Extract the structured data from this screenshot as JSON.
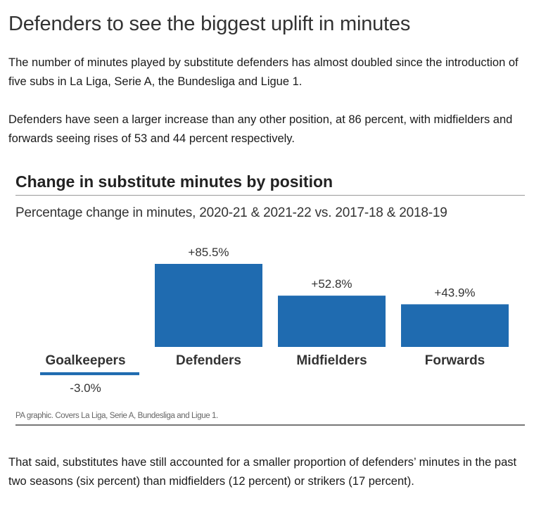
{
  "article": {
    "headline": "Defenders to see the biggest uplift in minutes",
    "paragraph1": "The number of minutes played by substitute defenders has almost doubled since the introduction of five subs in La Liga, Serie A, the Bundesliga and Ligue 1.",
    "paragraph2": "Defenders have seen a larger increase than any other position, at 86 percent, with midfielders and forwards seeing rises of 53 and 44 percent respectively.",
    "paragraph3": "That said, substitutes have still accounted for a smaller proportion of defenders’ minutes in the past two seasons (six percent) than midfielders (12 percent) or strikers (17 percent)."
  },
  "chart_data": {
    "type": "bar",
    "title": "Change in substitute minutes by position",
    "subtitle": "Percentage change in minutes, 2020-21 & 2021-22 vs. 2017-18 & 2018-19",
    "categories": [
      "Goalkeepers",
      "Defenders",
      "Midfielders",
      "Forwards"
    ],
    "values": [
      -3.0,
      85.5,
      52.8,
      43.9
    ],
    "data_labels": [
      "-3.0%",
      "+85.5%",
      "+52.8%",
      "+43.9%"
    ],
    "xlabel": "",
    "ylabel": "",
    "ylim": [
      -3.0,
      85.5
    ],
    "grid": false,
    "source": "PA graphic. Covers La Liga, Serie A, Bundesliga and Ligue 1.",
    "bar_color": "#1f6bb0",
    "negative_color": "#1f6bb0"
  }
}
